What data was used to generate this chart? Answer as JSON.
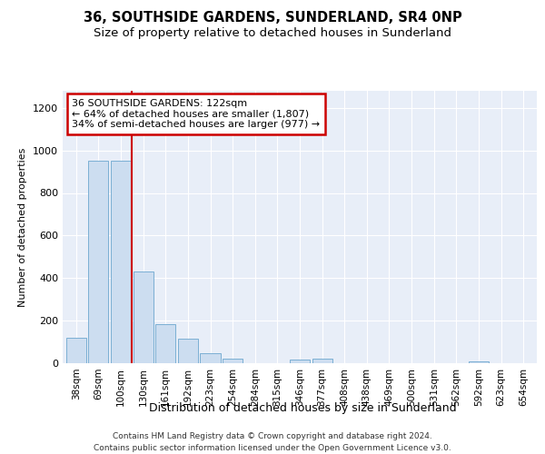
{
  "title1": "36, SOUTHSIDE GARDENS, SUNDERLAND, SR4 0NP",
  "title2": "Size of property relative to detached houses in Sunderland",
  "xlabel": "Distribution of detached houses by size in Sunderland",
  "ylabel": "Number of detached properties",
  "categories": [
    "38sqm",
    "69sqm",
    "100sqm",
    "130sqm",
    "161sqm",
    "192sqm",
    "223sqm",
    "254sqm",
    "284sqm",
    "315sqm",
    "346sqm",
    "377sqm",
    "408sqm",
    "438sqm",
    "469sqm",
    "500sqm",
    "531sqm",
    "562sqm",
    "592sqm",
    "623sqm",
    "654sqm"
  ],
  "values": [
    120,
    950,
    950,
    430,
    185,
    115,
    45,
    20,
    0,
    0,
    15,
    20,
    0,
    0,
    0,
    0,
    0,
    0,
    10,
    0,
    0
  ],
  "bar_color": "#ccddf0",
  "bar_edge_color": "#7bafd4",
  "vline_x": 2.5,
  "vline_color": "#cc0000",
  "annotation_line1": "36 SOUTHSIDE GARDENS: 122sqm",
  "annotation_line2": "← 64% of detached houses are smaller (1,807)",
  "annotation_line3": "34% of semi-detached houses are larger (977) →",
  "annotation_box_facecolor": "white",
  "annotation_box_edgecolor": "#cc0000",
  "ylim": [
    0,
    1280
  ],
  "yticks": [
    0,
    200,
    400,
    600,
    800,
    1000,
    1200
  ],
  "bg_color": "#e8eef8",
  "grid_color": "#ffffff",
  "footer_line1": "Contains HM Land Registry data © Crown copyright and database right 2024.",
  "footer_line2": "Contains public sector information licensed under the Open Government Licence v3.0.",
  "title1_fontsize": 10.5,
  "title2_fontsize": 9.5,
  "xlabel_fontsize": 9,
  "ylabel_fontsize": 8,
  "tick_fontsize": 7.5,
  "annot_fontsize": 8,
  "footer_fontsize": 6.5
}
